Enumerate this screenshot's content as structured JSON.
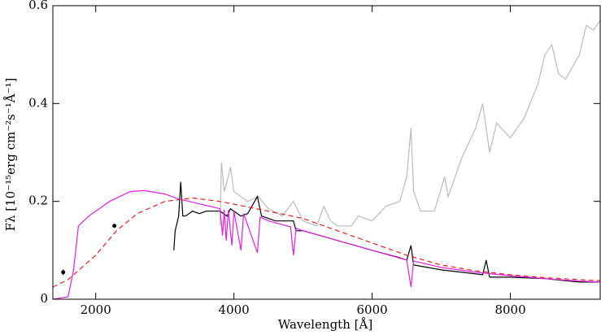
{
  "chart_data": {
    "type": "line",
    "xlabel": "Wavelength [Å]",
    "ylabel": "Fλ [10⁻¹⁵erg cm⁻²s⁻¹Å⁻¹]",
    "xlim": [
      1380,
      9300
    ],
    "ylim": [
      0,
      0.6
    ],
    "xticks": [
      2000,
      4000,
      6000,
      8000
    ],
    "yticks": [
      0,
      0.2,
      0.4,
      0.6
    ],
    "series": [
      {
        "color": "#bbbbbb",
        "dashed": false,
        "x": [
          3800,
          3820,
          3860,
          3900,
          3950,
          4000,
          4100,
          4200,
          4350,
          4500,
          4700,
          4861,
          5000,
          5200,
          5300,
          5400,
          5500,
          5700,
          5800,
          6000,
          6200,
          6400,
          6500,
          6563,
          6600,
          6700,
          6900,
          7050,
          7100,
          7300,
          7500,
          7600,
          7700,
          7800,
          8000,
          8200,
          8400,
          8500,
          8600,
          8700,
          8800,
          9000,
          9100,
          9200,
          9300
        ],
        "values": [
          0.15,
          0.28,
          0.22,
          0.24,
          0.27,
          0.22,
          0.21,
          0.2,
          0.21,
          0.185,
          0.17,
          0.2,
          0.16,
          0.15,
          0.19,
          0.16,
          0.15,
          0.15,
          0.17,
          0.16,
          0.19,
          0.2,
          0.25,
          0.35,
          0.22,
          0.18,
          0.18,
          0.25,
          0.21,
          0.29,
          0.35,
          0.4,
          0.3,
          0.36,
          0.33,
          0.37,
          0.44,
          0.5,
          0.52,
          0.46,
          0.45,
          0.5,
          0.56,
          0.55,
          0.57
        ]
      },
      {
        "color": "#000000",
        "dashed": false,
        "x": [
          3130,
          3150,
          3200,
          3230,
          3260,
          3300,
          3400,
          3500,
          3600,
          3700,
          3800,
          3900,
          3950,
          4000,
          4100,
          4200,
          4340,
          4400,
          4600,
          4861,
          4900,
          5000,
          5500,
          6000,
          6400,
          6500,
          6563,
          6600,
          7000,
          7600,
          7650,
          7700,
          8000,
          8500,
          9000,
          9300
        ],
        "values": [
          0.1,
          0.14,
          0.17,
          0.24,
          0.17,
          0.17,
          0.18,
          0.175,
          0.18,
          0.18,
          0.18,
          0.17,
          0.185,
          0.18,
          0.17,
          0.175,
          0.21,
          0.17,
          0.16,
          0.16,
          0.14,
          0.14,
          0.12,
          0.1,
          0.085,
          0.08,
          0.11,
          0.07,
          0.06,
          0.05,
          0.08,
          0.045,
          0.045,
          0.042,
          0.035,
          0.035
        ]
      },
      {
        "color": "#e020e0",
        "dashed": false,
        "x": [
          1380,
          1600,
          1680,
          1750,
          1900,
          2200,
          2500,
          2700,
          3000,
          3200,
          3500,
          3800,
          3835,
          3860,
          3889,
          3920,
          3970,
          4000,
          4102,
          4140,
          4340,
          4380,
          4500,
          4820,
          4861,
          4900,
          5000,
          5500,
          6000,
          6500,
          6563,
          6600,
          7000,
          7500,
          8000,
          8500,
          9000,
          9300
        ],
        "values": [
          0,
          0.005,
          0.06,
          0.15,
          0.17,
          0.2,
          0.22,
          0.222,
          0.215,
          0.205,
          0.195,
          0.185,
          0.13,
          0.183,
          0.12,
          0.182,
          0.11,
          0.18,
          0.1,
          0.175,
          0.095,
          0.168,
          0.16,
          0.148,
          0.09,
          0.145,
          0.14,
          0.12,
          0.1,
          0.08,
          0.025,
          0.078,
          0.065,
          0.055,
          0.048,
          0.042,
          0.037,
          0.035
        ]
      },
      {
        "color": "#e02020",
        "dashed": true,
        "x": [
          1380,
          1600,
          2000,
          2300,
          2600,
          3000,
          3400,
          3800,
          4500,
          5000,
          5500,
          6000,
          6500,
          7000,
          7500,
          8000,
          8500,
          9000,
          9300
        ],
        "values": [
          0.025,
          0.04,
          0.09,
          0.14,
          0.175,
          0.2,
          0.207,
          0.2,
          0.18,
          0.165,
          0.14,
          0.115,
          0.09,
          0.07,
          0.058,
          0.05,
          0.044,
          0.04,
          0.038
        ]
      }
    ],
    "points": {
      "color": "#000000",
      "x": [
        1530,
        2270
      ],
      "values": [
        0.055,
        0.15
      ],
      "errors": [
        0.006,
        0.004
      ]
    }
  }
}
